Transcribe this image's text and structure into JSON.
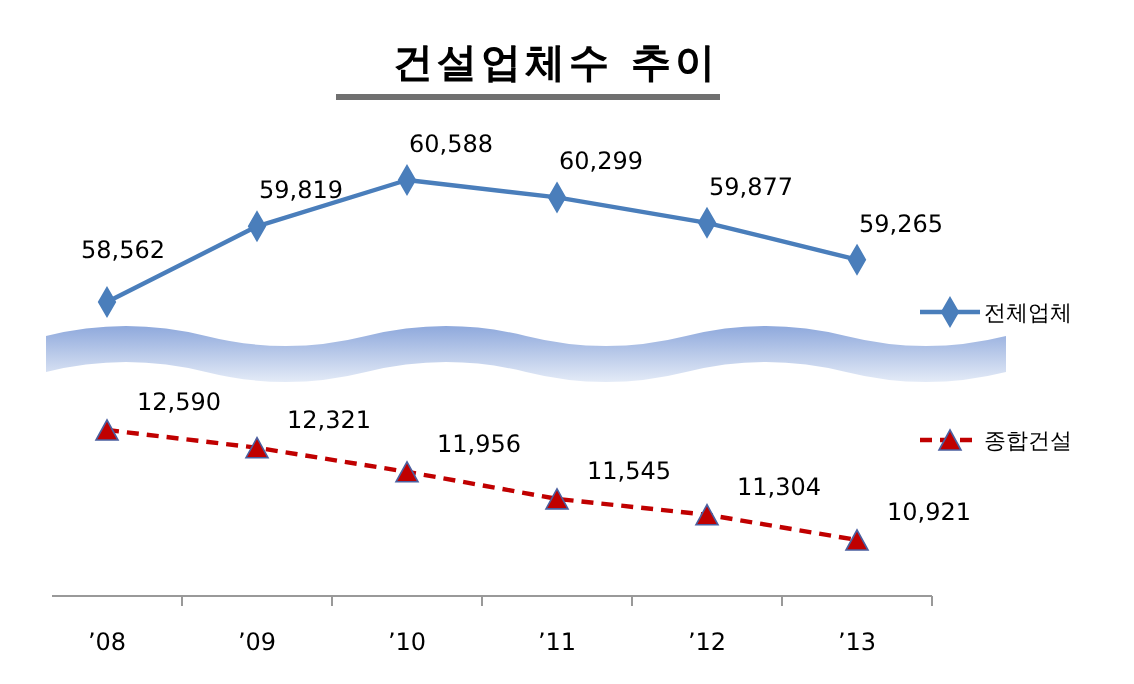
{
  "chart_data": [
    {
      "type": "line",
      "title": "건설업체수 추이",
      "categories": [
        null,
        null,
        null,
        null,
        null,
        null
      ],
      "tick_labels": false,
      "legend": "right",
      "series": [
        {
          "name": "전체업체",
          "color": "#4a7ebb",
          "values": [
            58562,
            59819,
            60588,
            60299,
            59877,
            59265
          ],
          "value_labels": [
            "58,562",
            "59,819",
            "60,588",
            "60,299",
            "59,877",
            "59,265"
          ],
          "marker": "diamond",
          "line_style": "solid"
        }
      ]
    },
    {
      "type": "line",
      "categories": [
        "’08",
        "’09",
        "’10",
        "’11",
        "’12",
        "’13"
      ],
      "tick_labels": "x",
      "legend": "right",
      "series": [
        {
          "name": "종합건설",
          "color": "#c00000",
          "values": [
            12590,
            12321,
            11956,
            11545,
            11304,
            10921
          ],
          "value_labels": [
            "12,590",
            "12,321",
            "11,956",
            "11,545",
            "11,304",
            "10,921"
          ],
          "marker": "triangle",
          "line_style": "dashed"
        }
      ]
    }
  ]
}
